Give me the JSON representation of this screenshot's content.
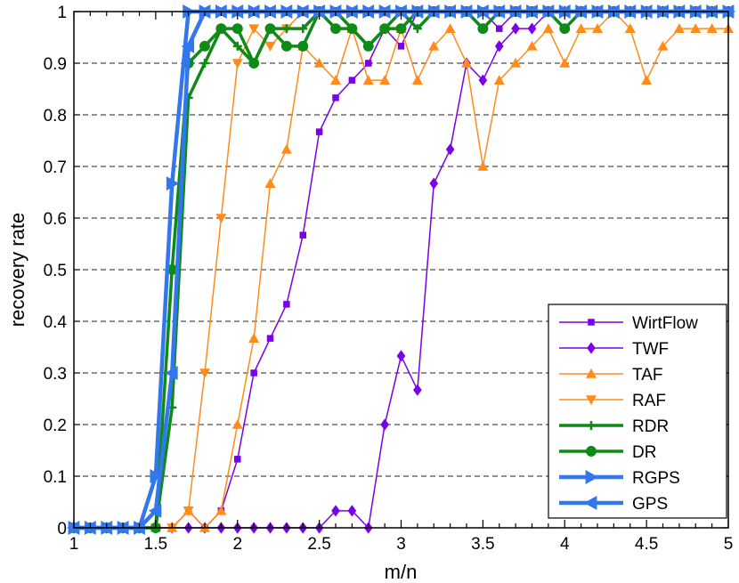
{
  "chart_data": {
    "type": "line",
    "title": "",
    "xlabel": "m/n",
    "ylabel": "recovery rate",
    "xlim": [
      1,
      5
    ],
    "ylim": [
      0,
      1
    ],
    "xticks": [
      "1",
      "1.5",
      "2",
      "2.5",
      "3",
      "3.5",
      "4",
      "4.5",
      "5"
    ],
    "yticks": [
      "0",
      "0.1",
      "0.2",
      "0.3",
      "0.4",
      "0.5",
      "0.6",
      "0.7",
      "0.8",
      "0.9",
      "1"
    ],
    "grid": "horizontal dashed",
    "legend_position": "bottom-right",
    "x": [
      1.0,
      1.1,
      1.2,
      1.3,
      1.4,
      1.5,
      1.6,
      1.7,
      1.8,
      1.9,
      2.0,
      2.1,
      2.2,
      2.3,
      2.4,
      2.5,
      2.6,
      2.7,
      2.8,
      2.9,
      3.0,
      3.1,
      3.2,
      3.3,
      3.4,
      3.5,
      3.6,
      3.7,
      3.8,
      3.9,
      4.0,
      4.1,
      4.2,
      4.3,
      4.4,
      4.5,
      4.6,
      4.7,
      4.8,
      4.9,
      5.0
    ],
    "series": [
      {
        "name": "WirtFlow",
        "color": "#7a00e6",
        "width": 1.5,
        "marker": "square",
        "values": [
          0,
          0,
          0,
          0,
          0,
          0,
          0,
          0.033,
          0,
          0.033,
          0.133,
          0.3,
          0.367,
          0.433,
          0.567,
          0.767,
          0.833,
          0.867,
          0.9,
          0.967,
          0.933,
          1,
          1,
          1,
          1,
          1,
          0.967,
          1,
          1,
          1,
          1,
          1,
          1,
          1,
          1,
          1,
          1,
          1,
          1,
          1,
          1
        ]
      },
      {
        "name": "TWF",
        "color": "#7a00e6",
        "width": 1.5,
        "marker": "diamond",
        "values": [
          0,
          0,
          0,
          0,
          0,
          0,
          0,
          0,
          0,
          0,
          0,
          0,
          0,
          0,
          0,
          0,
          0.033,
          0.033,
          0,
          0.2,
          0.333,
          0.267,
          0.667,
          0.733,
          0.9,
          0.867,
          0.933,
          0.967,
          0.967,
          1,
          1,
          1,
          1,
          1,
          1,
          1,
          1,
          1,
          1,
          1,
          1
        ]
      },
      {
        "name": "TAF",
        "color": "#ff8c1a",
        "width": 1.5,
        "marker": "triangle-up",
        "values": [
          0,
          0,
          0,
          0,
          0,
          0,
          0,
          0.033,
          0,
          0.033,
          0.2,
          0.367,
          0.667,
          0.733,
          0.933,
          0.9,
          0.867,
          0.967,
          0.867,
          0.867,
          0.967,
          0.867,
          0.933,
          0.967,
          0.9,
          0.7,
          0.867,
          0.9,
          0.933,
          0.967,
          0.9,
          0.967,
          0.967,
          1,
          0.967,
          0.867,
          0.933,
          0.967,
          0.967,
          0.967,
          0.967
        ]
      },
      {
        "name": "RAF",
        "color": "#ff8c1a",
        "width": 1.5,
        "marker": "triangle-down",
        "values": [
          0,
          0,
          0,
          0,
          0,
          0,
          0,
          0.033,
          0.3,
          0.6,
          0.9,
          0.967,
          0.933,
          0.967,
          1,
          1,
          1,
          1,
          1,
          1,
          1,
          1,
          1,
          1,
          1,
          1,
          1,
          1,
          1,
          1,
          1,
          1,
          1,
          1,
          1,
          1,
          1,
          1,
          1,
          1,
          1
        ]
      },
      {
        "name": "RDR",
        "color": "#0e8a16",
        "width": 3.5,
        "marker": "plus",
        "values": [
          0,
          0,
          0,
          0,
          0,
          0,
          0.233,
          0.833,
          0.9,
          0.967,
          0.933,
          0.9,
          0.967,
          0.967,
          0.967,
          1,
          1,
          0.967,
          0.933,
          0.967,
          1,
          0.967,
          1,
          1,
          1,
          1,
          1,
          1,
          1,
          1,
          1,
          1,
          1,
          1,
          1,
          1,
          1,
          1,
          1,
          1,
          1
        ]
      },
      {
        "name": "DR",
        "color": "#0e8a16",
        "width": 3.5,
        "marker": "circle",
        "values": [
          0,
          0,
          0,
          0,
          0,
          0,
          0.5,
          0.9,
          0.933,
          0.967,
          0.967,
          0.9,
          0.967,
          0.933,
          0.933,
          1,
          0.967,
          0.967,
          0.933,
          0.967,
          0.967,
          1,
          1,
          1,
          1,
          0.967,
          1,
          1,
          1,
          1,
          0.967,
          1,
          1,
          1,
          1,
          1,
          1,
          1,
          1,
          1,
          1
        ]
      },
      {
        "name": "RGPS",
        "color": "#3377ee",
        "width": 4.5,
        "marker": "triangle-right",
        "values": [
          0,
          0,
          0,
          0,
          0,
          0.1,
          0.667,
          1,
          1,
          1,
          1,
          1,
          1,
          1,
          1,
          1,
          1,
          1,
          1,
          1,
          1,
          1,
          1,
          1,
          1,
          1,
          1,
          1,
          1,
          1,
          1,
          1,
          1,
          1,
          1,
          1,
          1,
          1,
          1,
          1,
          1
        ]
      },
      {
        "name": "GPS",
        "color": "#3377ee",
        "width": 4.5,
        "marker": "triangle-left",
        "values": [
          0,
          0,
          0,
          0,
          0,
          0.033,
          0.3,
          0.933,
          1,
          1,
          1,
          1,
          1,
          1,
          1,
          1,
          1,
          1,
          1,
          1,
          1,
          1,
          1,
          1,
          1,
          1,
          1,
          1,
          1,
          1,
          1,
          1,
          1,
          1,
          1,
          1,
          1,
          1,
          1,
          1,
          1
        ]
      }
    ]
  }
}
